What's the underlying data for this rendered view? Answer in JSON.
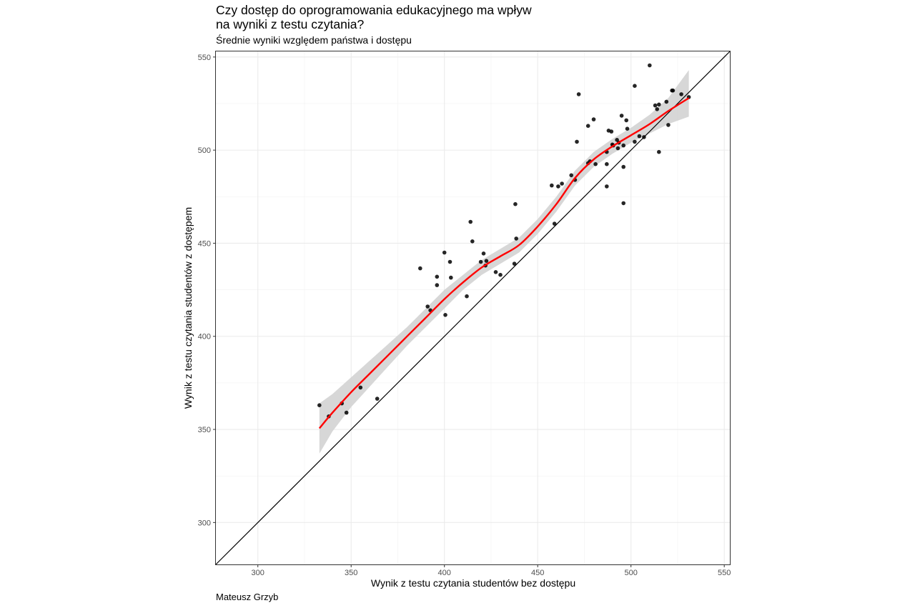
{
  "chart_data": {
    "type": "scatter",
    "title": "Czy dostęp do oprogramowania edukacyjnego ma wpływ na wyniki z testu czytania?",
    "subtitle": "Średnie wyniki względem państwa i dostępu",
    "caption": "Mateusz Grzyb",
    "xlabel": "Wynik z testu czytania studentów bez dostępu",
    "ylabel": "Wynik z testu czytania studentów z dostępem",
    "xlim": [
      277.5,
      553
    ],
    "ylim": [
      277.5,
      553
    ],
    "xticks": [
      300,
      350,
      400,
      450,
      500,
      550
    ],
    "yticks": [
      300,
      350,
      400,
      450,
      500,
      550
    ],
    "grid": true,
    "reference_line": {
      "slope": 1,
      "intercept": 0,
      "color": "#000000"
    },
    "trend": {
      "method": "loess",
      "color": "#ff0000",
      "band_color": "#d3d3d3",
      "x": [
        333,
        340,
        350,
        360,
        370,
        380,
        390,
        400,
        410,
        420,
        430,
        440,
        450,
        460,
        470,
        480,
        490,
        500,
        510,
        520,
        531
      ],
      "y": [
        350.6,
        359,
        370,
        380,
        390,
        400,
        410,
        420,
        429,
        437,
        443,
        449,
        459,
        471,
        485,
        495,
        502,
        508,
        514,
        521,
        528
      ],
      "lower": [
        337,
        349,
        362,
        373,
        384,
        395,
        405,
        415,
        425,
        433,
        439,
        445,
        455,
        467,
        481,
        491,
        498,
        504,
        509,
        514,
        518
      ],
      "upper": [
        364,
        369,
        378,
        387,
        396,
        405,
        415,
        425,
        433,
        441,
        447,
        453,
        463,
        475,
        489,
        499,
        506,
        512,
        519,
        528,
        543
      ]
    },
    "points": [
      {
        "x": 333,
        "y": 363
      },
      {
        "x": 338,
        "y": 357
      },
      {
        "x": 345,
        "y": 364
      },
      {
        "x": 347.5,
        "y": 359
      },
      {
        "x": 355,
        "y": 372.5
      },
      {
        "x": 364,
        "y": 366.5
      },
      {
        "x": 387,
        "y": 436.5
      },
      {
        "x": 391,
        "y": 416
      },
      {
        "x": 392.5,
        "y": 414
      },
      {
        "x": 396,
        "y": 432
      },
      {
        "x": 396,
        "y": 427.5
      },
      {
        "x": 400,
        "y": 445
      },
      {
        "x": 400.5,
        "y": 411.5
      },
      {
        "x": 403,
        "y": 440
      },
      {
        "x": 403.5,
        "y": 431.5
      },
      {
        "x": 412,
        "y": 421.5
      },
      {
        "x": 414,
        "y": 461.5
      },
      {
        "x": 415,
        "y": 451
      },
      {
        "x": 419.5,
        "y": 440
      },
      {
        "x": 421,
        "y": 444.5
      },
      {
        "x": 422,
        "y": 438
      },
      {
        "x": 422.5,
        "y": 440.5
      },
      {
        "x": 427.5,
        "y": 434.5
      },
      {
        "x": 430,
        "y": 433
      },
      {
        "x": 437.5,
        "y": 439
      },
      {
        "x": 438,
        "y": 471
      },
      {
        "x": 438.5,
        "y": 452.5
      },
      {
        "x": 457.5,
        "y": 481
      },
      {
        "x": 459,
        "y": 460.5
      },
      {
        "x": 461,
        "y": 480.5
      },
      {
        "x": 463,
        "y": 482
      },
      {
        "x": 468,
        "y": 486.5
      },
      {
        "x": 470,
        "y": 484
      },
      {
        "x": 471,
        "y": 504.5
      },
      {
        "x": 472,
        "y": 530
      },
      {
        "x": 477,
        "y": 513
      },
      {
        "x": 477,
        "y": 493
      },
      {
        "x": 478,
        "y": 494
      },
      {
        "x": 480,
        "y": 516.5
      },
      {
        "x": 481,
        "y": 492.5
      },
      {
        "x": 487,
        "y": 499
      },
      {
        "x": 487,
        "y": 492.5
      },
      {
        "x": 487,
        "y": 480.5
      },
      {
        "x": 488,
        "y": 510.5
      },
      {
        "x": 489.5,
        "y": 510
      },
      {
        "x": 490,
        "y": 503
      },
      {
        "x": 490.5,
        "y": 502.5
      },
      {
        "x": 492.5,
        "y": 505.5
      },
      {
        "x": 493,
        "y": 501
      },
      {
        "x": 493.5,
        "y": 504
      },
      {
        "x": 495,
        "y": 518.5
      },
      {
        "x": 496,
        "y": 502.5
      },
      {
        "x": 496,
        "y": 491
      },
      {
        "x": 496,
        "y": 471.5
      },
      {
        "x": 497.5,
        "y": 516
      },
      {
        "x": 498,
        "y": 511.5
      },
      {
        "x": 502,
        "y": 534.5
      },
      {
        "x": 502,
        "y": 504.5
      },
      {
        "x": 504.5,
        "y": 507.5
      },
      {
        "x": 507,
        "y": 507
      },
      {
        "x": 510,
        "y": 545.5
      },
      {
        "x": 513,
        "y": 524
      },
      {
        "x": 514,
        "y": 522
      },
      {
        "x": 515,
        "y": 524.5
      },
      {
        "x": 515,
        "y": 499
      },
      {
        "x": 519,
        "y": 526
      },
      {
        "x": 520,
        "y": 513.5
      },
      {
        "x": 522,
        "y": 532
      },
      {
        "x": 522.5,
        "y": 532
      },
      {
        "x": 527,
        "y": 530
      },
      {
        "x": 531,
        "y": 528.5
      }
    ]
  }
}
